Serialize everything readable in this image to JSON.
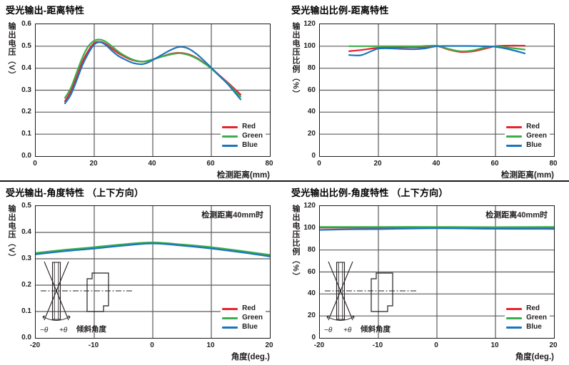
{
  "page": {
    "background": "#ffffff",
    "divider_color": "#1a1a1a",
    "grid_color": "#5b5b5f",
    "axis_border_color": "#1c1c1c"
  },
  "colors": {
    "red": "#e8232e",
    "green": "#3aae49",
    "blue": "#1b75bc"
  },
  "inset": {
    "minus_theta": "−θ",
    "plus_theta": "+θ",
    "caption": "倾斜角度"
  },
  "chart_data": [
    {
      "type": "line",
      "title": "受光输出-距离特性",
      "ylabel": "输出电压（V）",
      "xlabel": "检测距离(mm)",
      "xlim": [
        0,
        80
      ],
      "ylim": [
        0,
        0.6
      ],
      "xticks": [
        "0",
        "20",
        "40",
        "60",
        "80"
      ],
      "yticks": [
        "0.6",
        "0.5",
        "0.4",
        "0.3",
        "0.2",
        "0.1",
        "0.0"
      ],
      "grid": true,
      "legend_position": "bottom-right",
      "series": [
        {
          "name": "Red",
          "color_key": "red",
          "points": [
            [
              10,
              0.25
            ],
            [
              12,
              0.295
            ],
            [
              14,
              0.36
            ],
            [
              16,
              0.43
            ],
            [
              18,
              0.48
            ],
            [
              20,
              0.515
            ],
            [
              22,
              0.52
            ],
            [
              24,
              0.51
            ],
            [
              26,
              0.49
            ],
            [
              28,
              0.47
            ],
            [
              30,
              0.455
            ],
            [
              33,
              0.437
            ],
            [
              36,
              0.43
            ],
            [
              38,
              0.432
            ],
            [
              40,
              0.44
            ],
            [
              43,
              0.452
            ],
            [
              46,
              0.465
            ],
            [
              49,
              0.47
            ],
            [
              52,
              0.464
            ],
            [
              55,
              0.447
            ],
            [
              58,
              0.42
            ],
            [
              60,
              0.4
            ],
            [
              63,
              0.365
            ],
            [
              66,
              0.33
            ],
            [
              70,
              0.28
            ]
          ]
        },
        {
          "name": "Green",
          "color_key": "green",
          "points": [
            [
              10,
              0.265
            ],
            [
              12,
              0.31
            ],
            [
              14,
              0.38
            ],
            [
              16,
              0.45
            ],
            [
              18,
              0.5
            ],
            [
              20,
              0.525
            ],
            [
              22,
              0.53
            ],
            [
              24,
              0.52
            ],
            [
              26,
              0.5
            ],
            [
              28,
              0.478
            ],
            [
              30,
              0.46
            ],
            [
              33,
              0.44
            ],
            [
              36,
              0.43
            ],
            [
              38,
              0.433
            ],
            [
              40,
              0.44
            ],
            [
              43,
              0.452
            ],
            [
              46,
              0.462
            ],
            [
              49,
              0.468
            ],
            [
              52,
              0.461
            ],
            [
              55,
              0.444
            ],
            [
              58,
              0.418
            ],
            [
              60,
              0.398
            ],
            [
              63,
              0.362
            ],
            [
              66,
              0.326
            ],
            [
              70,
              0.27
            ]
          ]
        },
        {
          "name": "Blue",
          "color_key": "blue",
          "points": [
            [
              10,
              0.24
            ],
            [
              12,
              0.28
            ],
            [
              14,
              0.345
            ],
            [
              16,
              0.415
            ],
            [
              18,
              0.468
            ],
            [
              20,
              0.508
            ],
            [
              22,
              0.518
            ],
            [
              24,
              0.505
            ],
            [
              26,
              0.48
            ],
            [
              28,
              0.458
            ],
            [
              30,
              0.443
            ],
            [
              33,
              0.425
            ],
            [
              36,
              0.418
            ],
            [
              38,
              0.424
            ],
            [
              40,
              0.437
            ],
            [
              43,
              0.46
            ],
            [
              46,
              0.482
            ],
            [
              49,
              0.497
            ],
            [
              52,
              0.49
            ],
            [
              55,
              0.464
            ],
            [
              58,
              0.428
            ],
            [
              60,
              0.402
            ],
            [
              63,
              0.362
            ],
            [
              66,
              0.322
            ],
            [
              70,
              0.258
            ]
          ]
        }
      ]
    },
    {
      "type": "line",
      "title": "受光输出比例-距离特性",
      "ylabel": "输出电压比例（%）",
      "xlabel": "检测距离(mm)",
      "xlim": [
        0,
        80
      ],
      "ylim": [
        0,
        120
      ],
      "xticks": [
        "0",
        "20",
        "40",
        "60",
        "80"
      ],
      "yticks": [
        "120",
        "100",
        "80",
        "60",
        "40",
        "20",
        "0"
      ],
      "grid": true,
      "legend_position": "bottom-right",
      "series": [
        {
          "name": "Red",
          "color_key": "red",
          "points": [
            [
              10,
              95.5
            ],
            [
              14,
              96.5
            ],
            [
              18,
              98
            ],
            [
              20,
              98.5
            ],
            [
              25,
              99
            ],
            [
              30,
              99
            ],
            [
              35,
              99.2
            ],
            [
              40,
              100
            ],
            [
              44,
              97
            ],
            [
              48,
              94.8
            ],
            [
              52,
              95.2
            ],
            [
              56,
              97.5
            ],
            [
              60,
              100
            ],
            [
              64,
              100.5
            ],
            [
              70,
              100.5
            ]
          ]
        },
        {
          "name": "Green",
          "color_key": "green",
          "points": [
            [
              10,
              100
            ],
            [
              16,
              100
            ],
            [
              22,
              100
            ],
            [
              28,
              100
            ],
            [
              34,
              100
            ],
            [
              40,
              100.5
            ],
            [
              44,
              97.5
            ],
            [
              48,
              95.5
            ],
            [
              52,
              96
            ],
            [
              56,
              98.5
            ],
            [
              60,
              100
            ],
            [
              65,
              98.5
            ],
            [
              70,
              97
            ]
          ]
        },
        {
          "name": "Blue",
          "color_key": "blue",
          "points": [
            [
              10,
              92
            ],
            [
              14,
              91.8
            ],
            [
              18,
              96
            ],
            [
              20,
              97.8
            ],
            [
              24,
              98
            ],
            [
              28,
              97.5
            ],
            [
              32,
              97.3
            ],
            [
              36,
              98
            ],
            [
              40,
              100
            ],
            [
              45,
              100.2
            ],
            [
              50,
              100.2
            ],
            [
              55,
              100
            ],
            [
              60,
              99.5
            ],
            [
              65,
              97
            ],
            [
              70,
              93.5
            ]
          ]
        }
      ]
    },
    {
      "type": "line",
      "title": "受光输出-角度特性 （上下方向）",
      "ylabel": "输出电压（V）",
      "xlabel": "角度(deg.)",
      "note": "检测距离40mm时",
      "has_inset": true,
      "xlim": [
        -20,
        20
      ],
      "ylim": [
        0,
        0.5
      ],
      "xticks": [
        "-20",
        "-10",
        "0",
        "10",
        "20"
      ],
      "yticks": [
        "0.5",
        "0.4",
        "0.3",
        "0.2",
        "0.1",
        "0.0"
      ],
      "grid": true,
      "legend_position": "bottom-right",
      "series": [
        {
          "name": "Red",
          "color_key": "red",
          "points": [
            [
              -20,
              0.32
            ],
            [
              -15,
              0.332
            ],
            [
              -10,
              0.342
            ],
            [
              -5,
              0.353
            ],
            [
              0,
              0.36
            ],
            [
              5,
              0.352
            ],
            [
              10,
              0.342
            ],
            [
              15,
              0.328
            ],
            [
              20,
              0.312
            ]
          ]
        },
        {
          "name": "Green",
          "color_key": "green",
          "points": [
            [
              -20,
              0.322
            ],
            [
              -15,
              0.334
            ],
            [
              -10,
              0.344
            ],
            [
              -5,
              0.355
            ],
            [
              0,
              0.362
            ],
            [
              5,
              0.354
            ],
            [
              10,
              0.344
            ],
            [
              15,
              0.33
            ],
            [
              20,
              0.315
            ]
          ]
        },
        {
          "name": "Blue",
          "color_key": "blue",
          "points": [
            [
              -20,
              0.317
            ],
            [
              -15,
              0.329
            ],
            [
              -10,
              0.339
            ],
            [
              -5,
              0.35
            ],
            [
              0,
              0.358
            ],
            [
              5,
              0.35
            ],
            [
              10,
              0.339
            ],
            [
              15,
              0.325
            ],
            [
              20,
              0.309
            ]
          ]
        }
      ]
    },
    {
      "type": "line",
      "title": "受光输出比例-角度特性 （上下方向）",
      "ylabel": "输出电压比例（%）",
      "xlabel": "角度(deg.)",
      "note": "检测距离40mm时",
      "has_inset": true,
      "xlim": [
        -20,
        20
      ],
      "ylim": [
        0,
        120
      ],
      "xticks": [
        "-20",
        "-10",
        "0",
        "10",
        "20"
      ],
      "yticks": [
        "120",
        "100",
        "80",
        "60",
        "40",
        "20",
        "0"
      ],
      "grid": true,
      "legend_position": "bottom-right",
      "series": [
        {
          "name": "Red",
          "color_key": "red",
          "points": [
            [
              -20,
              100.5
            ],
            [
              -10,
              100.5
            ],
            [
              0,
              100.4
            ],
            [
              5,
              100
            ],
            [
              10,
              99.8
            ],
            [
              15,
              100
            ],
            [
              20,
              100.5
            ]
          ]
        },
        {
          "name": "Green",
          "color_key": "green",
          "points": [
            [
              -20,
              101
            ],
            [
              -10,
              101
            ],
            [
              0,
              101
            ],
            [
              10,
              100.8
            ],
            [
              20,
              101
            ]
          ]
        },
        {
          "name": "Blue",
          "color_key": "blue",
          "points": [
            [
              -20,
              98.3
            ],
            [
              -15,
              98.8
            ],
            [
              -10,
              99
            ],
            [
              0,
              99.8
            ],
            [
              10,
              99.3
            ],
            [
              20,
              99.2
            ]
          ]
        }
      ]
    }
  ]
}
